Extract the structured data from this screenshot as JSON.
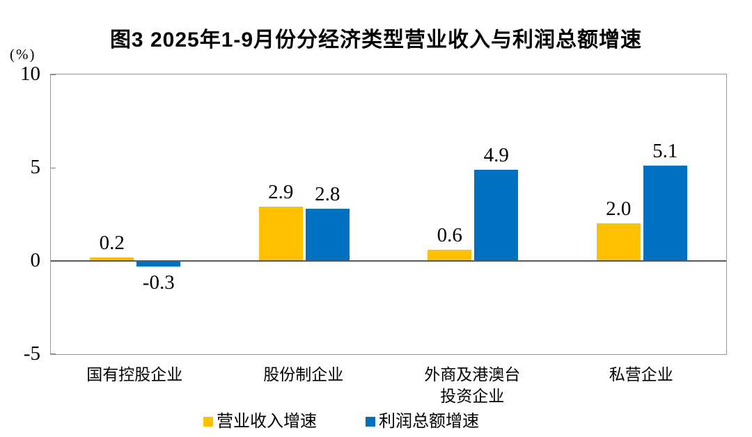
{
  "chart_data": {
    "type": "bar",
    "title": "图3 2025年1-9月份分经济类型营业收入与利润总额增速",
    "unit_label": "(%)",
    "categories": [
      "国有控股企业",
      "股份制企业",
      "外商及港澳台\n投资企业",
      "私营企业"
    ],
    "series": [
      {
        "name": "营业收入增速",
        "color": "#FFC000",
        "values": [
          0.2,
          2.9,
          0.6,
          2.0
        ],
        "labels": [
          "0.2",
          "2.9",
          "0.6",
          "2.0"
        ]
      },
      {
        "name": "利润总额增速",
        "color": "#0070C0",
        "values": [
          -0.3,
          2.8,
          4.9,
          5.1
        ],
        "labels": [
          "-0.3",
          "2.8",
          "4.9",
          "5.1"
        ]
      }
    ],
    "ylim": [
      -5,
      10
    ],
    "yticks": [
      10,
      5,
      0,
      -5
    ],
    "legend_position": "bottom",
    "grid": false,
    "colors": {
      "zero_line": "#595959",
      "plot_border": "#999999",
      "tick_mark": "#808080",
      "text": "#000000"
    }
  }
}
